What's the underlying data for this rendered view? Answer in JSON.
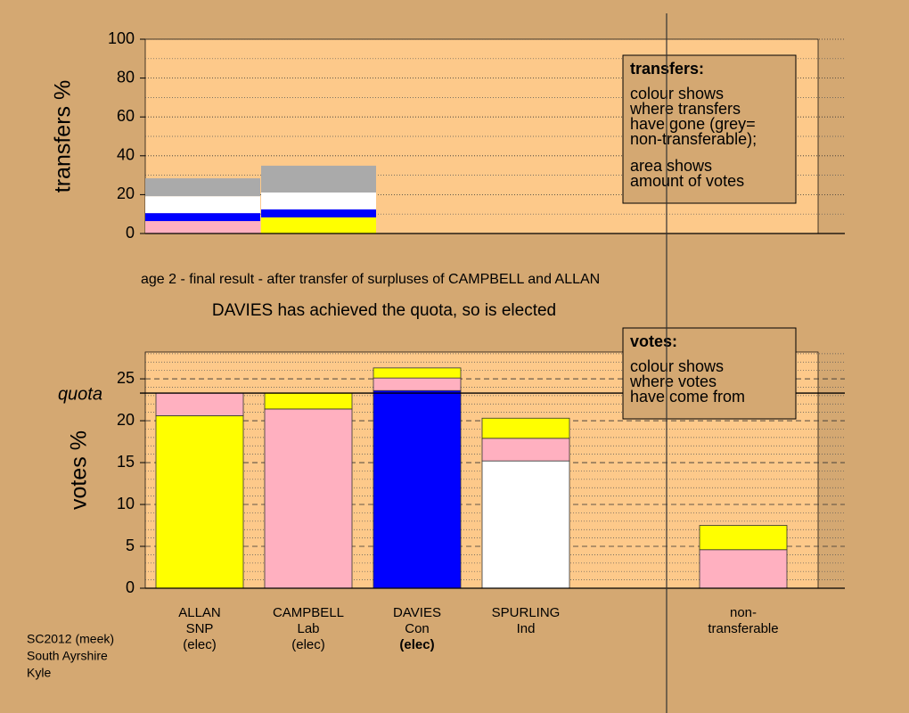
{
  "header": {
    "stage": "age 2 - final result - after transfer of surpluses of CAMPBELL and ALLAN",
    "status": "DAVIES has achieved the quota, so is elected"
  },
  "footer": [
    "SC2012 (meek)",
    "South Ayrshire",
    "Kyle"
  ],
  "chart_data": [
    {
      "type": "bar",
      "ylabel": "transfers %",
      "ylim": [
        0,
        100
      ],
      "yticks": [
        0,
        20,
        40,
        60,
        80,
        100
      ],
      "minor_yticks": [
        10,
        30,
        50,
        70,
        90
      ],
      "grid": true,
      "bars": [
        {
          "segments": [
            {
              "color": "#ffb0c0",
              "value": 6.4
            },
            {
              "color": "#0000ff",
              "value": 4.1
            },
            {
              "color": "#ffffff",
              "value": 8.7
            },
            {
              "color": "#aaaaaa",
              "value": 9.2
            }
          ]
        },
        {
          "segments": [
            {
              "color": "#ffff00",
              "value": 8.3
            },
            {
              "color": "#0000ff",
              "value": 4.1
            },
            {
              "color": "#ffffff",
              "value": 8.7
            },
            {
              "color": "#aaaaaa",
              "value": 13.8
            }
          ]
        }
      ],
      "note": {
        "heading": "transfers:",
        "paragraphs": [
          [
            "colour shows",
            "where transfers",
            "have gone (grey=",
            "non-transferable);"
          ],
          [
            "area shows",
            "amount of votes"
          ]
        ]
      }
    },
    {
      "type": "bar",
      "ylabel": "votes %",
      "ylim": [
        0,
        28.2
      ],
      "yticks": [
        0,
        5,
        10,
        15,
        20,
        25
      ],
      "minor_yticks": [
        1,
        2,
        3,
        4,
        6,
        7,
        8,
        9,
        11,
        12,
        13,
        14,
        16,
        17,
        18,
        19,
        21,
        22,
        23,
        24,
        26,
        27,
        28
      ],
      "grid": true,
      "reference_line": {
        "value": 23.3,
        "label": "quota"
      },
      "categories": [
        {
          "lines": [
            "ALLAN",
            "SNP",
            "(elec)"
          ]
        },
        {
          "lines": [
            "CAMPBELL",
            "Lab",
            "(elec)"
          ]
        },
        {
          "lines": [
            "DAVIES",
            "Con",
            "(elec)"
          ],
          "emphasis": 2
        },
        {
          "lines": [
            "SPURLING",
            "Ind"
          ]
        },
        null,
        {
          "lines": [
            "non-",
            "transferable"
          ]
        }
      ],
      "bars": [
        {
          "segments": [
            {
              "color": "#ffff00",
              "value": 20.6
            },
            {
              "color": "#ffb0c0",
              "value": 2.7
            }
          ]
        },
        {
          "segments": [
            {
              "color": "#ffb0c0",
              "value": 21.4
            },
            {
              "color": "#ffff00",
              "value": 1.9
            }
          ]
        },
        {
          "segments": [
            {
              "color": "#0000ff",
              "value": 23.6
            },
            {
              "color": "#ffb0c0",
              "value": 1.5
            },
            {
              "color": "#ffff00",
              "value": 1.2
            }
          ]
        },
        {
          "segments": [
            {
              "color": "#ffffff",
              "value": 15.2
            },
            {
              "color": "#ffb0c0",
              "value": 2.7
            },
            {
              "color": "#ffff00",
              "value": 2.4
            }
          ]
        },
        null,
        {
          "segments": [
            {
              "color": "#ffb0c0",
              "value": 4.6
            },
            {
              "color": "#ffff00",
              "value": 2.9
            }
          ]
        }
      ],
      "note": {
        "heading": "votes:",
        "paragraphs": [
          [
            "colour shows",
            "where votes",
            "have come from"
          ]
        ]
      }
    }
  ]
}
